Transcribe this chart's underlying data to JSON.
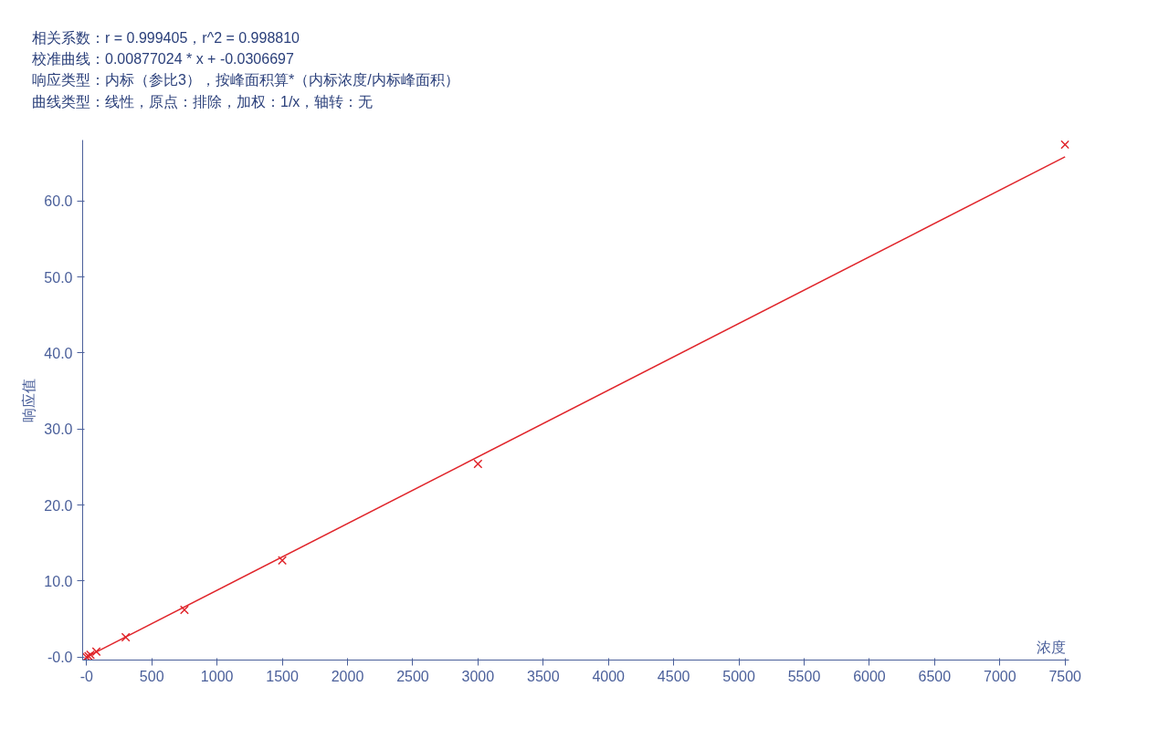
{
  "chart_data": {
    "type": "scatter",
    "annotations": [
      "相关系数：r = 0.999405，r^2 = 0.998810",
      "校准曲线：0.00877024 * x + -0.0306697",
      "响应类型：内标（参比3），按峰面积算*（内标浓度/内标峰面积）",
      "曲线类型：线性，原点：排除，加权：1/x，轴转：无"
    ],
    "xlabel": "浓度",
    "ylabel": "响应值",
    "series": [
      {
        "color": "#e0252b",
        "marker": "cross",
        "x": [
          0,
          15,
          30,
          75,
          300,
          750,
          1500,
          3000,
          7500
        ],
        "values": [
          0.0,
          0.1,
          0.3,
          0.7,
          2.6,
          6.2,
          12.7,
          25.4,
          67.4
        ]
      },
      {
        "type": "line",
        "color": "#e0252b",
        "marker": "none",
        "x": [
          0,
          7500
        ],
        "values": [
          0.0,
          65.8
        ]
      }
    ],
    "xlim": [
      -30,
      7530
    ],
    "ylim": [
      -0.4,
      68
    ],
    "xticks": [
      {
        "value": 0,
        "label": "-0"
      },
      500,
      1000,
      1500,
      2000,
      2500,
      3000,
      3500,
      4000,
      4500,
      5000,
      5500,
      6000,
      6500,
      7000,
      7500
    ],
    "yticks": [
      {
        "value": 0,
        "label": "-0.0"
      },
      {
        "value": 10,
        "label": "10.0"
      },
      {
        "value": 20,
        "label": "20.0"
      },
      {
        "value": 30,
        "label": "30.0"
      },
      {
        "value": 40,
        "label": "40.0"
      },
      {
        "value": 50,
        "label": "50.0"
      },
      {
        "value": 60,
        "label": "60.0"
      }
    ],
    "grid": false
  }
}
